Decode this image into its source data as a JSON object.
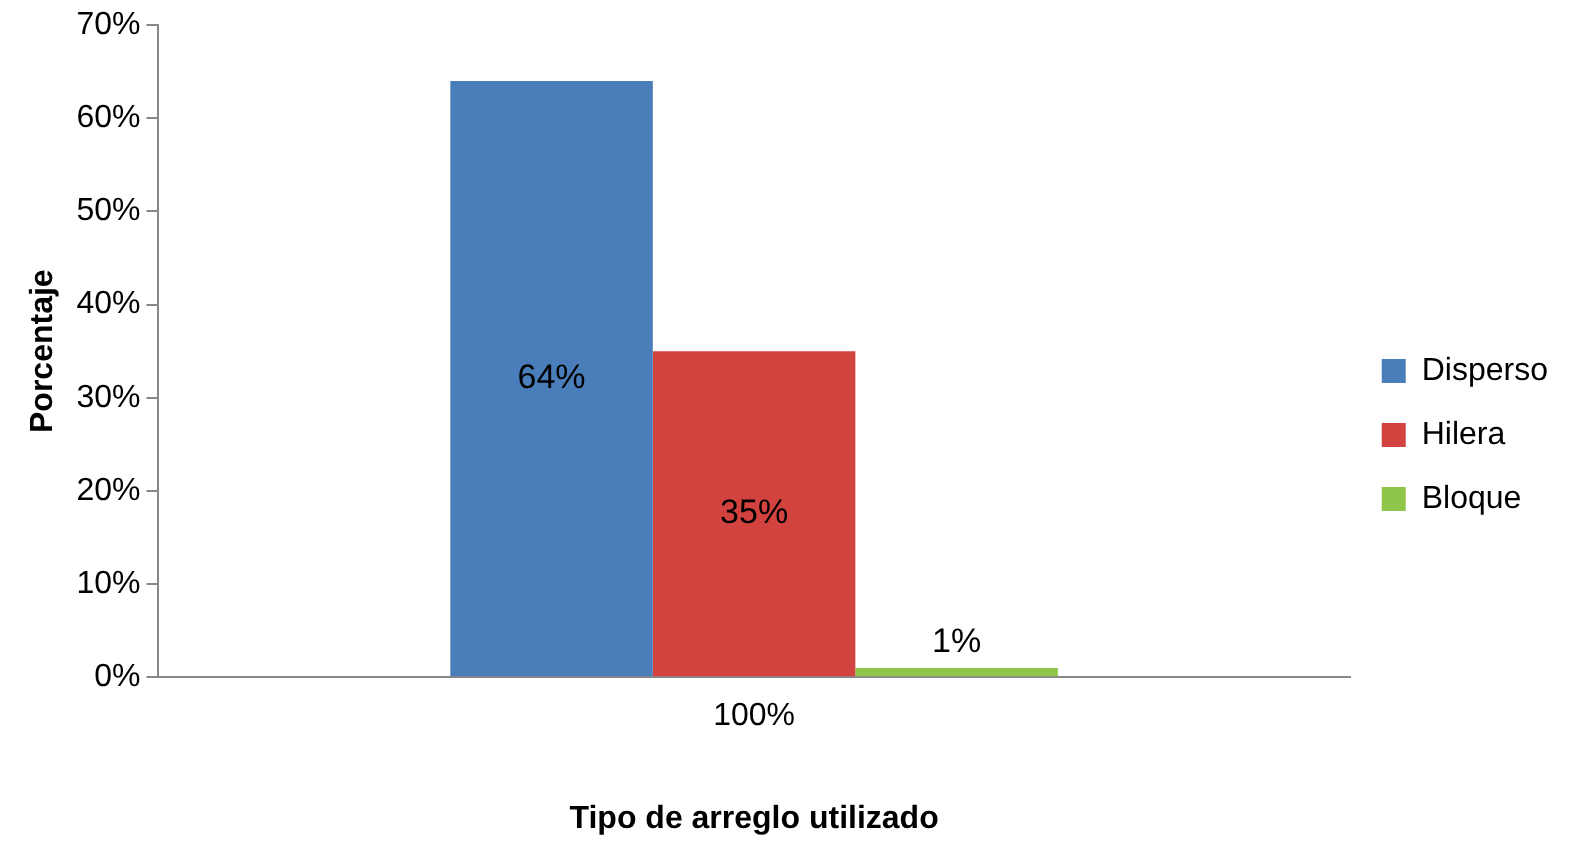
{
  "chart_data": {
    "type": "bar",
    "xlabel": "Tipo de arreglo utilizado",
    "ylabel": "Porcentaje",
    "categories": [
      "100%"
    ],
    "series": [
      {
        "name": "Disperso",
        "color": "#4a7ebb",
        "values": [
          64
        ],
        "value_labels": [
          "64%"
        ]
      },
      {
        "name": "Hilera",
        "color": "#d2433f",
        "values": [
          35
        ],
        "value_labels": [
          "35%"
        ]
      },
      {
        "name": "Bloque",
        "color": "#8fc54a",
        "values": [
          1
        ],
        "value_labels": [
          "1%"
        ]
      }
    ],
    "ylim": [
      0,
      70
    ],
    "yticks": [
      {
        "value": 0,
        "label": "0%"
      },
      {
        "value": 10,
        "label": "10%"
      },
      {
        "value": 20,
        "label": "20%"
      },
      {
        "value": 30,
        "label": "30%"
      },
      {
        "value": 40,
        "label": "40%"
      },
      {
        "value": 50,
        "label": "50%"
      },
      {
        "value": 60,
        "label": "60%"
      },
      {
        "value": 70,
        "label": "70%"
      }
    ],
    "grid": false,
    "legend": "right"
  }
}
